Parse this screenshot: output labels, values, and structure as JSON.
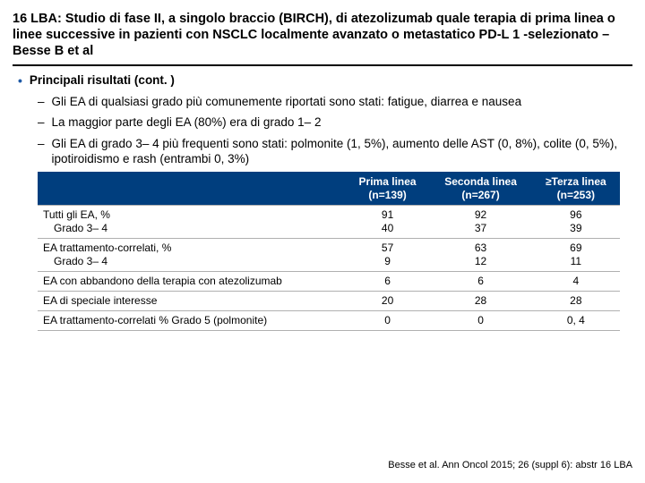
{
  "title": "16 LBA: Studio di fase II, a singolo braccio (BIRCH), di atezolizumab quale terapia di prima linea o linee successive in pazienti con NSCLC localmente avanzato o metastatico PD-L 1 -selezionato – Besse B et al",
  "main_bullet": "Principali risultati (cont. )",
  "sub_bullets": [
    "Gli EA di qualsiasi grado più comunemente riportati sono stati: fatigue, diarrea e nausea",
    "La maggior parte degli EA (80%) era di grado 1– 2",
    "Gli EA di grado 3– 4 più frequenti sono stati: polmonite (1, 5%), aumento delle AST (0, 8%), colite (0, 5%), ipotiroidismo e rash (entrambi 0, 3%)"
  ],
  "table": {
    "header_bg": "#003e7e",
    "header_color": "#ffffff",
    "border_color": "#b0b0b0",
    "columns": [
      {
        "line1": "",
        "line2": ""
      },
      {
        "line1": "Prima linea",
        "line2": "(n=139)"
      },
      {
        "line1": "Seconda linea",
        "line2": "(n=267)"
      },
      {
        "line1": "≥Terza linea",
        "line2": "(n=253)"
      }
    ],
    "rows": [
      {
        "label_line1": "Tutti gli EA, %",
        "label_line2": "Grado 3– 4",
        "c1a": "91",
        "c1b": "40",
        "c2a": "92",
        "c2b": "37",
        "c3a": "96",
        "c3b": "39"
      },
      {
        "label_line1": "EA trattamento-correlati, %",
        "label_line2": "Grado 3– 4",
        "c1a": "57",
        "c1b": "9",
        "c2a": "63",
        "c2b": "12",
        "c3a": "69",
        "c3b": "11"
      },
      {
        "label_line1": "EA con abbandono della terapia con atezolizumab",
        "label_line2": "",
        "c1a": "6",
        "c1b": "",
        "c2a": "6",
        "c2b": "",
        "c3a": "4",
        "c3b": ""
      },
      {
        "label_line1": "EA di speciale interesse",
        "label_line2": "",
        "c1a": "20",
        "c1b": "",
        "c2a": "28",
        "c2b": "",
        "c3a": "28",
        "c3b": ""
      },
      {
        "label_line1": "EA trattamento-correlati % Grado 5 (polmonite)",
        "label_line2": "",
        "c1a": "0",
        "c1b": "",
        "c2a": "0",
        "c2b": "",
        "c3a": "0, 4",
        "c3b": ""
      }
    ]
  },
  "citation": "Besse et al. Ann Oncol 2015; 26 (suppl 6): abstr 16 LBA"
}
